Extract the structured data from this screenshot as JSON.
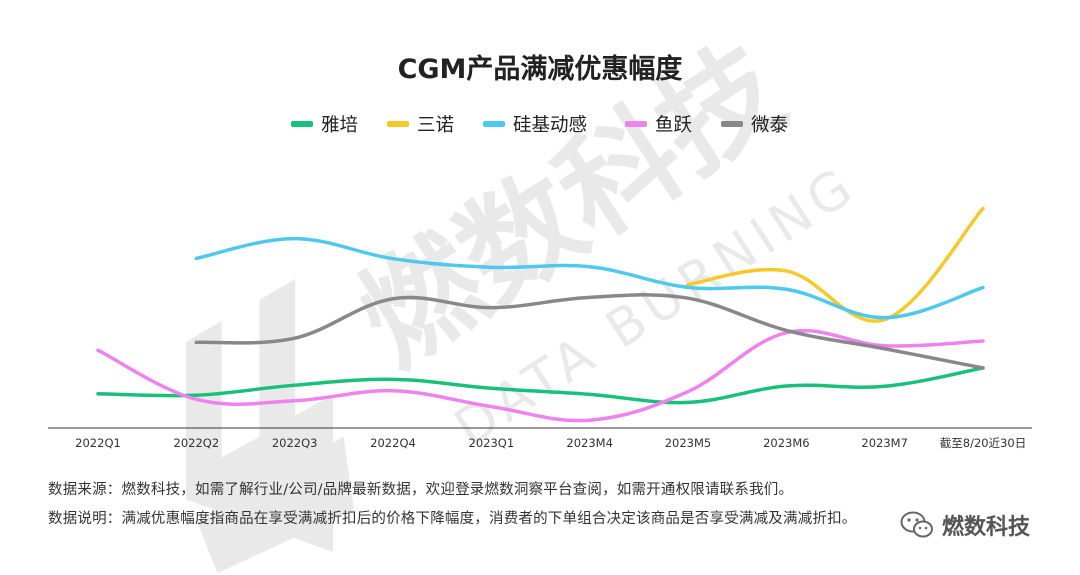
{
  "watermark": {
    "main": "燃数科技",
    "sub": "DATA BURNING"
  },
  "brand": {
    "name": "燃数科技",
    "icon": "wechat-icon"
  },
  "notes": {
    "source": "数据来源：燃数科技，如需了解行业/公司/品牌最新数据，欢迎登录燃数洞察平台查阅，如需开通权限请联系我们。",
    "description": "数据说明：满减优惠幅度指商品在享受满减折扣后的价格下降幅度，消费者的下单组合决定该商品是否享受满减及满减折扣。"
  },
  "chart_data": {
    "type": "line",
    "title": "CGM产品满减优惠幅度",
    "xlabel": "",
    "ylabel": "",
    "categories": [
      "2022Q1",
      "2022Q2",
      "2022Q3",
      "2022Q4",
      "2023Q1",
      "2023M4",
      "2023M5",
      "2023M6",
      "2023M7",
      "截至8/20近30日"
    ],
    "ylim": [
      0,
      100
    ],
    "grid": false,
    "legend_position": "top",
    "series": [
      {
        "name": "雅培",
        "color": "#19c07a",
        "values": [
          12.3,
          11.8,
          15.4,
          17.5,
          14.3,
          12.1,
          9.2,
          15.1,
          15.0,
          21.6
        ]
      },
      {
        "name": "三诺",
        "color": "#f5c928",
        "values": [
          null,
          null,
          null,
          null,
          null,
          null,
          51.6,
          56.5,
          39.0,
          79.0
        ]
      },
      {
        "name": "硅基动感",
        "color": "#4fc8ee",
        "values": [
          null,
          61.0,
          68.1,
          60.9,
          57.8,
          58.0,
          50.6,
          49.9,
          39.7,
          50.5
        ]
      },
      {
        "name": "鱼跃",
        "color": "#ee82ee",
        "values": [
          28.0,
          10.3,
          9.8,
          13.4,
          7.7,
          2.8,
          13.1,
          34.3,
          29.6,
          31.3
        ]
      },
      {
        "name": "微泰",
        "color": "#888888",
        "values": [
          null,
          30.8,
          32.3,
          46.5,
          43.3,
          47.0,
          46.7,
          35.1,
          28.5,
          21.6
        ]
      }
    ]
  }
}
